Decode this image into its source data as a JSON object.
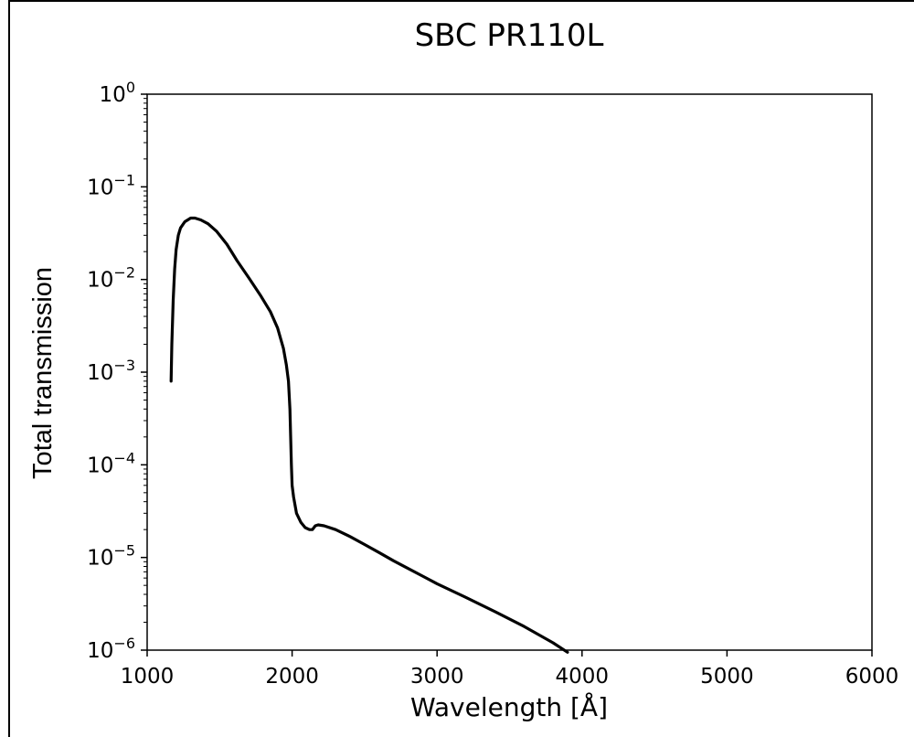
{
  "chart_data": {
    "type": "line",
    "title": "SBC PR110L",
    "xlabel": "Wavelength [Å]",
    "ylabel": "Total transmission",
    "xlim": [
      1000,
      6000
    ],
    "ylim": [
      1e-06,
      1
    ],
    "yscale": "log",
    "grid": false,
    "xticks": [
      {
        "value": 1000,
        "label": "1000"
      },
      {
        "value": 2000,
        "label": "2000"
      },
      {
        "value": 3000,
        "label": "3000"
      },
      {
        "value": 4000,
        "label": "4000"
      },
      {
        "value": 5000,
        "label": "5000"
      },
      {
        "value": 6000,
        "label": "6000"
      }
    ],
    "yticks": [
      {
        "value": 1.0,
        "base": "10",
        "exp": "0"
      },
      {
        "value": 0.1,
        "base": "10",
        "exp": "−1"
      },
      {
        "value": 0.01,
        "base": "10",
        "exp": "−2"
      },
      {
        "value": 0.001,
        "base": "10",
        "exp": "−3"
      },
      {
        "value": 0.0001,
        "base": "10",
        "exp": "−4"
      },
      {
        "value": 1e-05,
        "base": "10",
        "exp": "−5"
      },
      {
        "value": 1e-06,
        "base": "10",
        "exp": "−6"
      }
    ],
    "series": [
      {
        "color": "#000000",
        "x": [
          1165,
          1170,
          1180,
          1190,
          1200,
          1215,
          1230,
          1260,
          1300,
          1330,
          1370,
          1420,
          1480,
          1550,
          1620,
          1700,
          1780,
          1850,
          1900,
          1940,
          1960,
          1975,
          1985,
          1990,
          1995,
          2000,
          2010,
          2030,
          2060,
          2090,
          2120,
          2140,
          2160,
          2180,
          2220,
          2300,
          2400,
          2500,
          2600,
          2700,
          2800,
          2900,
          3000,
          3200,
          3400,
          3600,
          3800,
          3900
        ],
        "y": [
          0.0008,
          0.002,
          0.006,
          0.013,
          0.021,
          0.03,
          0.036,
          0.042,
          0.046,
          0.046,
          0.044,
          0.04,
          0.033,
          0.024,
          0.016,
          0.0105,
          0.0068,
          0.0045,
          0.003,
          0.0018,
          0.0012,
          0.0008,
          0.0004,
          0.0002,
          0.0001,
          6e-05,
          4.5e-05,
          3e-05,
          2.4e-05,
          2.1e-05,
          2e-05,
          2e-05,
          2.2e-05,
          2.25e-05,
          2.2e-05,
          2e-05,
          1.68e-05,
          1.38e-05,
          1.13e-05,
          9.2e-06,
          7.6e-06,
          6.3e-06,
          5.2e-06,
          3.7e-06,
          2.6e-06,
          1.8e-06,
          1.2e-06,
          9.5e-07
        ]
      }
    ]
  }
}
